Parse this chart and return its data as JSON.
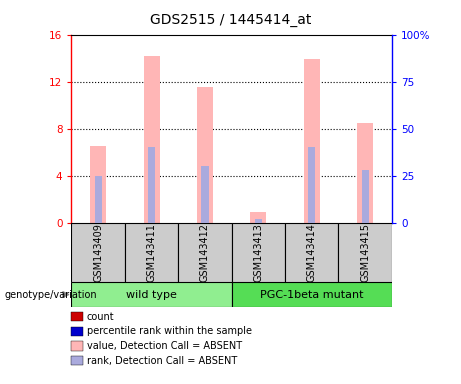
{
  "title": "GDS2515 / 1445414_at",
  "samples": [
    "GSM143409",
    "GSM143411",
    "GSM143412",
    "GSM143413",
    "GSM143414",
    "GSM143415"
  ],
  "bar_values": [
    6.5,
    14.2,
    11.5,
    0.9,
    13.9,
    8.5
  ],
  "rank_values_pct": [
    25.0,
    40.0,
    30.0,
    2.2,
    40.0,
    28.0
  ],
  "bar_color_absent": "#FFB6B6",
  "rank_color_absent": "#AAAADD",
  "ylim_left": [
    0,
    16
  ],
  "ylim_right": [
    0,
    100
  ],
  "yticks_left": [
    0,
    4,
    8,
    12,
    16
  ],
  "yticks_right": [
    0,
    25,
    50,
    75,
    100
  ],
  "ytick_labels_left": [
    "0",
    "4",
    "8",
    "12",
    "16"
  ],
  "ytick_labels_right": [
    "0",
    "25",
    "50",
    "75",
    "100%"
  ],
  "bar_width": 0.3,
  "bg_color": "#FFFFFF",
  "legend_items": [
    {
      "label": "count",
      "color": "#CC0000"
    },
    {
      "label": "percentile rank within the sample",
      "color": "#0000CC"
    },
    {
      "label": "value, Detection Call = ABSENT",
      "color": "#FFB6B6"
    },
    {
      "label": "rank, Detection Call = ABSENT",
      "color": "#AAAADD"
    }
  ],
  "genotype_label": "genotype/variation",
  "wt_label": "wild type",
  "pgc_label": "PGC-1beta mutant",
  "wt_color": "#90EE90",
  "pgc_color": "#55DD55",
  "sample_bg": "#CCCCCC"
}
